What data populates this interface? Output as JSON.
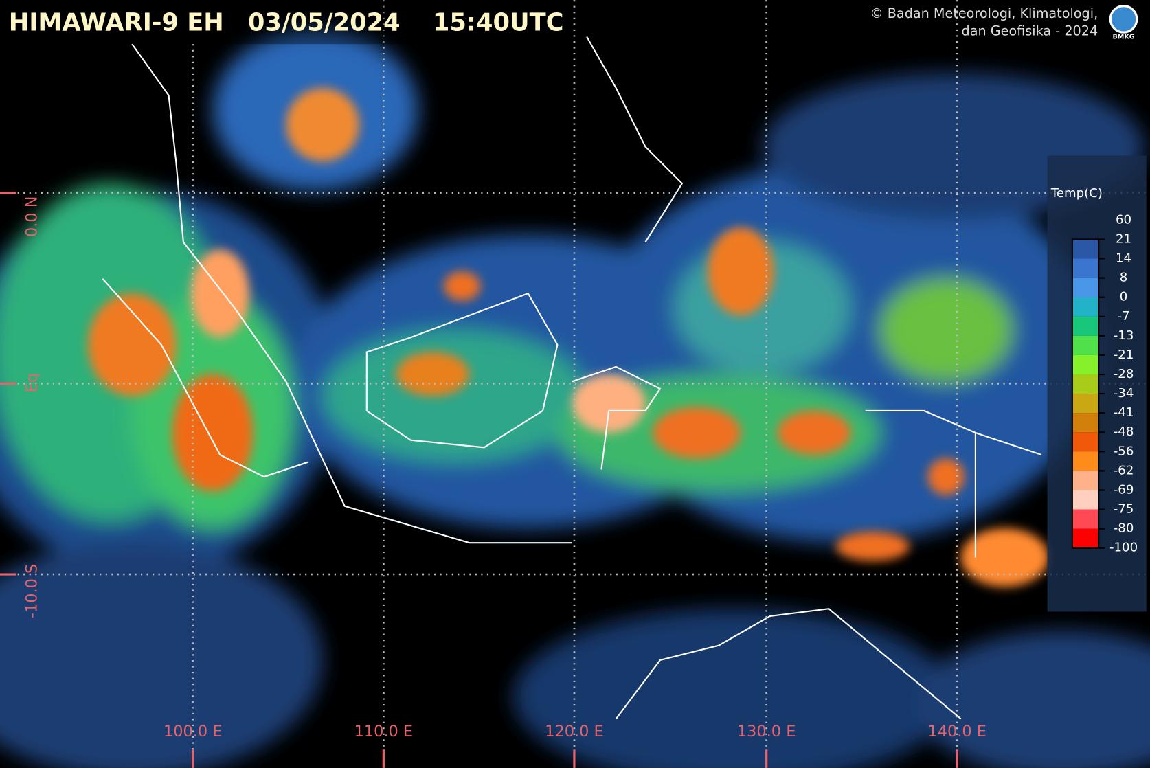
{
  "header": {
    "satellite": "HIMAWARI-9 EH",
    "date": "03/05/2024",
    "time": "15:40UTC",
    "copyright_line1": "© Badan Meteorologi, Klimatologi,",
    "copyright_line2": "dan Geofisika -  2024",
    "logo": "BMKG"
  },
  "longitude_labels": [
    "100.0 E",
    "110.0 E",
    "120.0 E",
    "130.0 E",
    "140.0 E"
  ],
  "latitude_labels": [
    "0.0 N",
    "Eq",
    "-10.0 S"
  ],
  "legend": {
    "title": "Temp(C)",
    "ticks": [
      60,
      21,
      14,
      8,
      0,
      -7,
      -13,
      -21,
      -28,
      -34,
      -41,
      -48,
      -56,
      -62,
      -69,
      -75,
      -80,
      -100
    ],
    "colors": [
      "#1c3f73",
      "#2a58a6",
      "#3a75cf",
      "#4a97ea",
      "#22b3c8",
      "#19c77a",
      "#4fe04a",
      "#86f02a",
      "#a9cc1a",
      "#c9a814",
      "#d2800c",
      "#f0590a",
      "#ff8c1a",
      "#ffb28a",
      "#ffd0c0",
      "#ff4a55",
      "#ff0000"
    ]
  }
}
